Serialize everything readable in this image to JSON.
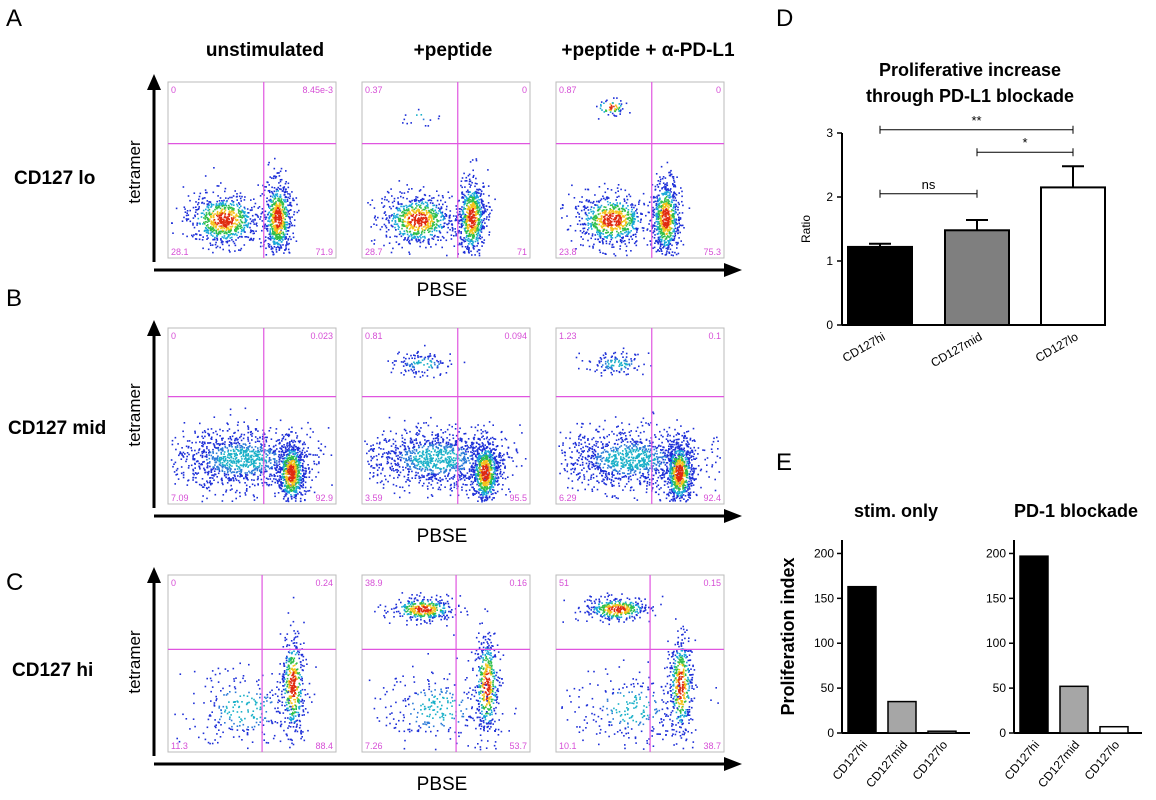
{
  "panel_labels": [
    "A",
    "B",
    "C",
    "D",
    "E"
  ],
  "flow": {
    "columns": [
      "unstimulated",
      "+peptide",
      "+peptide + α-PD-L1"
    ],
    "rows": [
      {
        "label": "CD127 lo",
        "quadrants": [
          [
            "0",
            "8.45e-3",
            "28.1",
            "71.9"
          ],
          [
            "0.37",
            "0",
            "28.7",
            "71"
          ],
          [
            "0.87",
            "0",
            "23.8",
            "75.3"
          ]
        ]
      },
      {
        "label": "CD127 mid",
        "quadrants": [
          [
            "0",
            "0.023",
            "7.09",
            "92.9"
          ],
          [
            "0.81",
            "0.094",
            "3.59",
            "95.5"
          ],
          [
            "1.23",
            "0.1",
            "6.29",
            "92.4"
          ]
        ]
      },
      {
        "label": "CD127 hi",
        "quadrants": [
          [
            "0",
            "0.24",
            "11.3",
            "88.4"
          ],
          [
            "38.9",
            "0.16",
            "7.26",
            "53.7"
          ],
          [
            "51",
            "0.15",
            "10.1",
            "38.7"
          ]
        ]
      }
    ],
    "y_axis_label": "tetramer",
    "x_axis_label": "PBSE"
  },
  "chart_data": [
    {
      "type": "bar",
      "title": "Proliferative increase through PD-L1 blockade",
      "ylabel": "Ratio",
      "categories": [
        "CD127hi",
        "CD127mid",
        "CD127lo"
      ],
      "values": [
        1.22,
        1.48,
        2.15
      ],
      "errors": [
        0.05,
        0.16,
        0.33
      ],
      "bar_colors": [
        "#000000",
        "#7f7f7f",
        "#ffffff"
      ],
      "ylim": [
        0,
        3
      ],
      "yticks": [
        "0",
        "1",
        "2",
        "3"
      ],
      "significance": [
        {
          "from": 0,
          "to": 1,
          "label": "ns",
          "y": 2.05
        },
        {
          "from": 1,
          "to": 2,
          "label": "*",
          "y": 2.7
        },
        {
          "from": 0,
          "to": 2,
          "label": "**",
          "y": 3.05
        }
      ]
    },
    {
      "type": "bar",
      "title": "stim. only",
      "ylabel": "Proliferation index",
      "categories": [
        "CD127hi",
        "CD127mid",
        "CD127lo"
      ],
      "values": [
        163,
        35,
        2
      ],
      "bar_colors": [
        "#000000",
        "#a6a6a6",
        "#ffffff"
      ],
      "ylim": [
        0,
        215
      ],
      "yticks": [
        "0",
        "50",
        "100",
        "150",
        "200"
      ]
    },
    {
      "type": "bar",
      "title": "PD-1 blockade",
      "ylabel": "",
      "categories": [
        "CD127hi",
        "CD127mid",
        "CD127lo"
      ],
      "values": [
        197,
        52,
        7
      ],
      "bar_colors": [
        "#000000",
        "#a6a6a6",
        "#ffffff"
      ],
      "ylim": [
        0,
        215
      ],
      "yticks": [
        "0",
        "50",
        "100",
        "150",
        "200"
      ]
    }
  ]
}
